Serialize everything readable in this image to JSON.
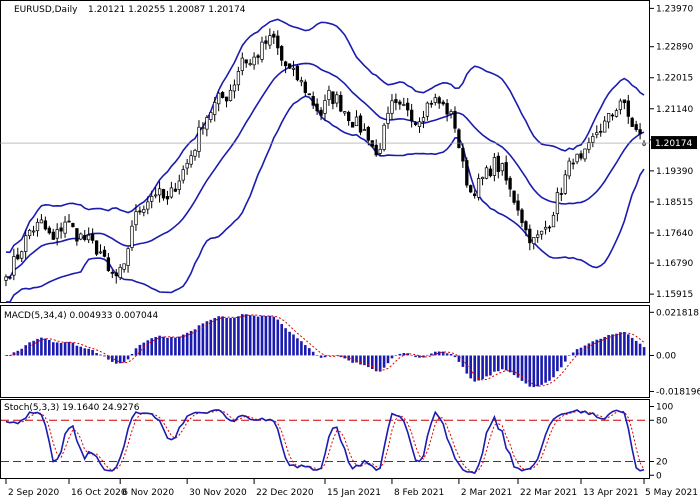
{
  "colors": {
    "background": "#ffffff",
    "candle": "#000000",
    "bollinger": "#1b1bb0",
    "macd_hist": "#1b1bb0",
    "macd_signal": "#e00000",
    "stoch_main": "#1b1bb0",
    "stoch_signal": "#e00000",
    "level_line": "#cc0000"
  },
  "chart_data": [
    {
      "type": "candlestick",
      "header": {
        "symbol": "EURUSD,Daily",
        "ohlc": "1.20121 1.20255 1.20087 1.20174"
      },
      "current_price_label": "1.20174",
      "y_ticks": [
        "1.23970",
        "1.22890",
        "1.22015",
        "1.21140",
        "1.20265",
        "1.19390",
        "1.18515",
        "1.17640",
        "1.16790",
        "1.15915"
      ],
      "y_tick_values": [
        1.2397,
        1.2289,
        1.22015,
        1.2114,
        1.20265,
        1.1939,
        1.18515,
        1.1764,
        1.1679,
        1.15915
      ],
      "ylim": [
        1.1575,
        1.2415
      ],
      "x_ticks": [
        "2 Sep 2020",
        "16 Oct 2020",
        "6 Nov 2020",
        "30 Nov 2020",
        "22 Dec 2020",
        "15 Jan 2021",
        "8 Feb 2021",
        "2 Mar 2021",
        "22 Mar 2021",
        "13 Apr 2021",
        "5 May 2021"
      ],
      "x_tick_index": [
        0,
        16,
        29,
        46,
        63,
        81,
        98,
        115,
        130,
        146,
        162
      ],
      "close_anchors": [
        [
          0,
          1.164
        ],
        [
          3,
          1.17
        ],
        [
          6,
          1.177
        ],
        [
          9,
          1.179
        ],
        [
          12,
          1.174
        ],
        [
          15,
          1.18
        ],
        [
          18,
          1.176
        ],
        [
          21,
          1.174
        ],
        [
          24,
          1.171
        ],
        [
          26,
          1.165
        ],
        [
          28,
          1.164
        ],
        [
          30,
          1.166
        ],
        [
          32,
          1.179
        ],
        [
          34,
          1.183
        ],
        [
          36,
          1.186
        ],
        [
          38,
          1.188
        ],
        [
          41,
          1.185
        ],
        [
          43,
          1.19
        ],
        [
          46,
          1.196
        ],
        [
          48,
          1.201
        ],
        [
          50,
          1.208
        ],
        [
          52,
          1.211
        ],
        [
          54,
          1.214
        ],
        [
          56,
          1.215
        ],
        [
          58,
          1.219
        ],
        [
          60,
          1.226
        ],
        [
          62,
          1.224
        ],
        [
          64,
          1.227
        ],
        [
          66,
          1.23
        ],
        [
          68,
          1.231
        ],
        [
          70,
          1.225
        ],
        [
          72,
          1.222
        ],
        [
          74,
          1.22
        ],
        [
          76,
          1.217
        ],
        [
          78,
          1.213
        ],
        [
          80,
          1.21
        ],
        [
          82,
          1.215
        ],
        [
          84,
          1.214
        ],
        [
          86,
          1.211
        ],
        [
          88,
          1.208
        ],
        [
          90,
          1.206
        ],
        [
          92,
          1.204
        ],
        [
          94,
          1.198
        ],
        [
          96,
          1.205
        ],
        [
          98,
          1.212
        ],
        [
          100,
          1.211
        ],
        [
          102,
          1.212
        ],
        [
          104,
          1.208
        ],
        [
          106,
          1.211
        ],
        [
          108,
          1.214
        ],
        [
          110,
          1.213
        ],
        [
          112,
          1.211
        ],
        [
          114,
          1.207
        ],
        [
          116,
          1.195
        ],
        [
          118,
          1.188
        ],
        [
          120,
          1.19
        ],
        [
          122,
          1.193
        ],
        [
          124,
          1.196
        ],
        [
          126,
          1.194
        ],
        [
          128,
          1.188
        ],
        [
          130,
          1.184
        ],
        [
          132,
          1.177
        ],
        [
          134,
          1.174
        ],
        [
          136,
          1.176
        ],
        [
          138,
          1.18
        ],
        [
          140,
          1.186
        ],
        [
          142,
          1.192
        ],
        [
          144,
          1.198
        ],
        [
          146,
          1.196
        ],
        [
          148,
          1.2
        ],
        [
          150,
          1.205
        ],
        [
          152,
          1.207
        ],
        [
          154,
          1.21
        ],
        [
          156,
          1.214
        ],
        [
          158,
          1.209
        ],
        [
          160,
          1.205
        ],
        [
          162,
          1.2017
        ]
      ],
      "bollinger_period": 20
    },
    {
      "type": "histogram",
      "header": "MACD(5,34,4) 0.004933 0.007044",
      "y_ticks": [
        "0.021818",
        "0.00",
        "-0.018196"
      ],
      "y_tick_values": [
        0.021818,
        0.0,
        -0.018196
      ],
      "ylim": [
        -0.0205,
        0.0245
      ],
      "fast": 5,
      "slow": 34,
      "signal": 4
    },
    {
      "type": "line",
      "header": "Stoch(5,3,3) 19.1640 24.9276",
      "y_ticks": [
        "100",
        "80",
        "20",
        "0"
      ],
      "y_tick_values": [
        100,
        80,
        20,
        0
      ],
      "levels": [
        80,
        20
      ],
      "ylim": [
        -4,
        108
      ],
      "k": 5,
      "d": 3,
      "slowing": 3
    }
  ]
}
